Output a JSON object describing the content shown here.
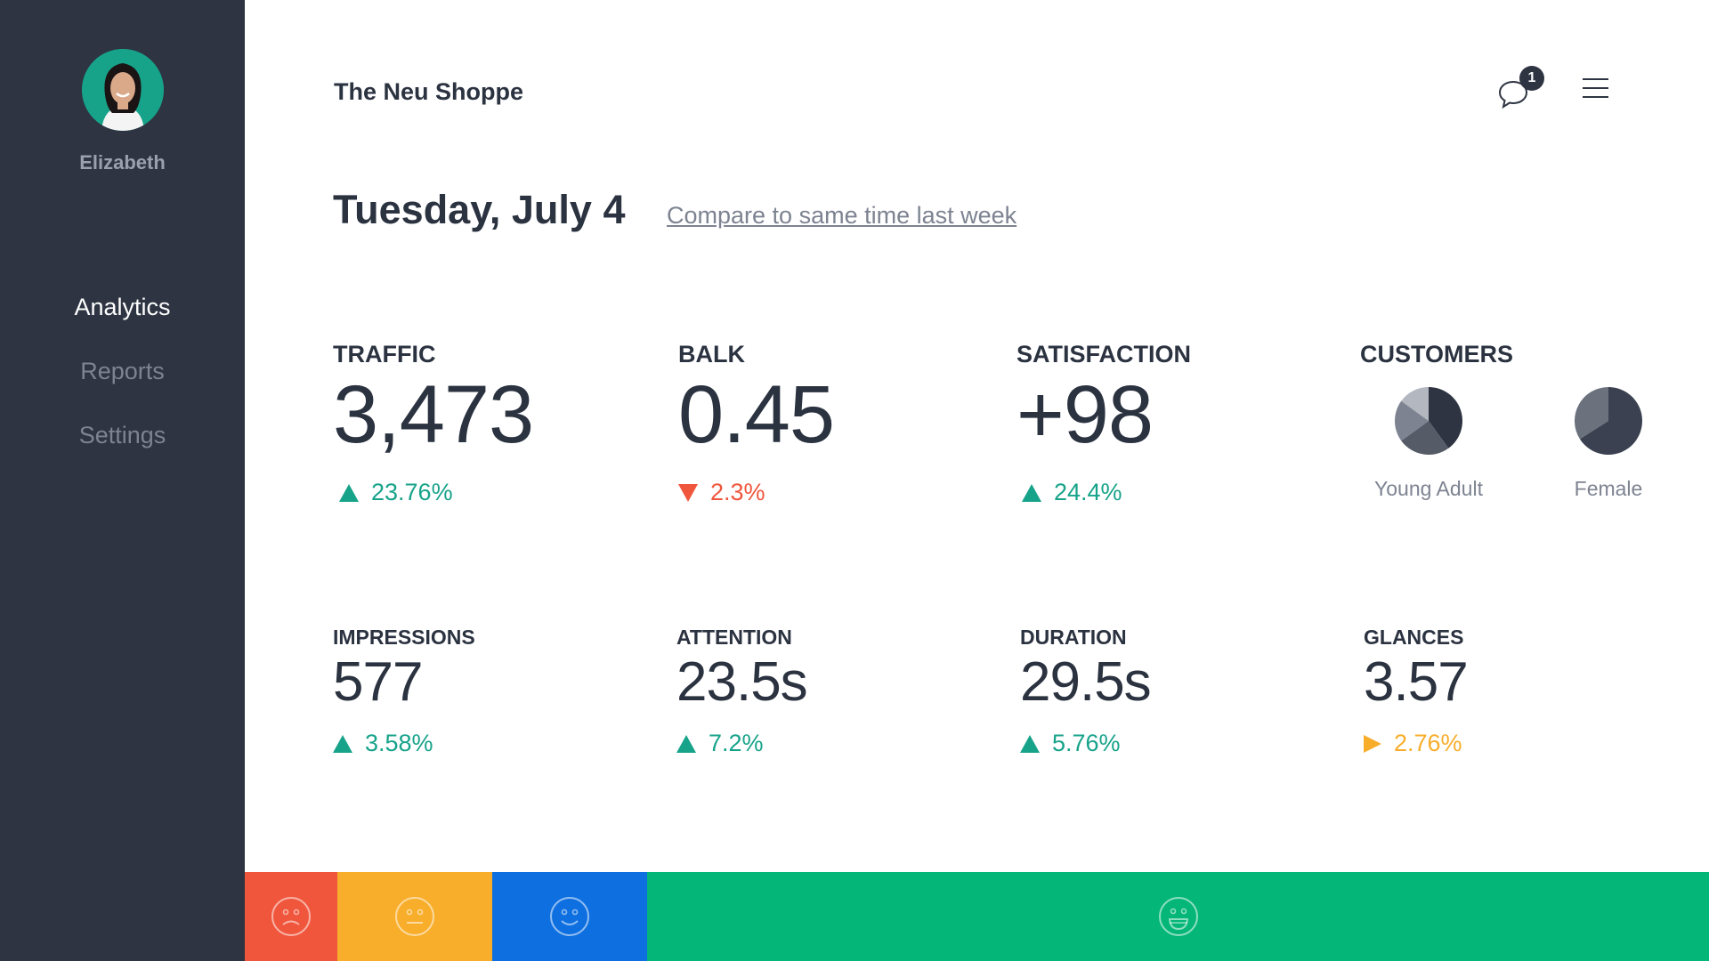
{
  "user": {
    "name": "Elizabeth"
  },
  "nav": {
    "items": [
      {
        "label": "Analytics",
        "active": true
      },
      {
        "label": "Reports",
        "active": false
      },
      {
        "label": "Settings",
        "active": false
      }
    ]
  },
  "header": {
    "shop_name": "The Neu Shoppe",
    "notification_count": "1",
    "chat_icon": "chat-bubble-icon",
    "menu_icon": "hamburger-menu-icon"
  },
  "date_row": {
    "date": "Tuesday, July 4",
    "compare_link": "Compare to same time last week"
  },
  "metrics": {
    "traffic": {
      "label": "TRAFFIC",
      "value": "3,473",
      "change": "23.76%",
      "trend": "up"
    },
    "balk": {
      "label": "BALK",
      "value": "0.45",
      "change": "2.3%",
      "trend": "down"
    },
    "satisfaction": {
      "label": "SATISFACTION",
      "value": "+98",
      "change": "24.4%",
      "trend": "up"
    },
    "impressions": {
      "label": "IMPRESSIONS",
      "value": "577",
      "change": "3.58%",
      "trend": "up"
    },
    "attention": {
      "label": "ATTENTION",
      "value": "23.5s",
      "change": "7.2%",
      "trend": "up"
    },
    "duration": {
      "label": "DURATION",
      "value": "29.5s",
      "change": "5.76%",
      "trend": "up"
    },
    "glances": {
      "label": "GLANCES",
      "value": "3.57",
      "change": "2.76%",
      "trend": "neutral"
    }
  },
  "customers": {
    "label": "CUSTOMERS",
    "pies": [
      {
        "label": "Young Adult",
        "slices": [
          0.4,
          0.25,
          0.2,
          0.15
        ],
        "colors": [
          "#2e3442",
          "#555b67",
          "#7d8391",
          "#b3b7bf"
        ]
      },
      {
        "label": "Female",
        "slices": [
          0.66,
          0.34
        ],
        "colors": [
          "#3b4150",
          "#6b717d"
        ]
      }
    ]
  },
  "mood_bar": {
    "segments": [
      {
        "name": "sad",
        "icon": "sad-face-icon",
        "color": "#f0563c",
        "share": 0.0634
      },
      {
        "name": "neutral",
        "icon": "neutral-face-icon",
        "color": "#f8ad2b",
        "share": 0.1058
      },
      {
        "name": "happy",
        "icon": "smile-face-icon",
        "color": "#0e6fe0",
        "share": 0.1058
      },
      {
        "name": "very-happy",
        "icon": "grin-face-icon",
        "color": "#04b678",
        "share": 0.725
      }
    ]
  },
  "colors": {
    "sidebar": "#2e3442",
    "positive": "#17a38a",
    "negative": "#f0563c",
    "neutral": "#f8ad2b",
    "text": "#2b3240",
    "muted": "#7d8391"
  }
}
